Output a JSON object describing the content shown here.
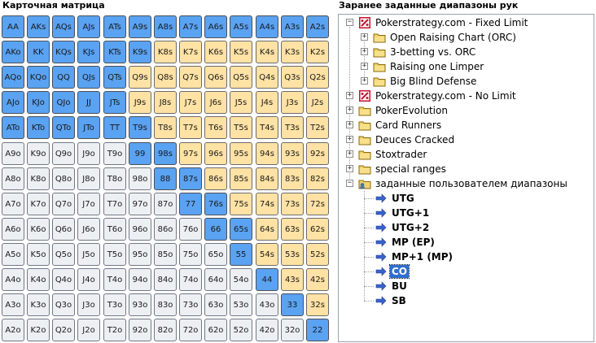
{
  "left_title": "Карточная матрица",
  "right_title": "Заранее заданные диапазоны рук",
  "matrix": [
    [
      [
        "AA",
        "s"
      ],
      [
        "AKs",
        "s"
      ],
      [
        "AQs",
        "s"
      ],
      [
        "AJs",
        "s"
      ],
      [
        "ATs",
        "s"
      ],
      [
        "A9s",
        "s"
      ],
      [
        "A8s",
        "s"
      ],
      [
        "A7s",
        "s"
      ],
      [
        "A6s",
        "s"
      ],
      [
        "A5s",
        "s"
      ],
      [
        "A4s",
        "s"
      ],
      [
        "A3s",
        "s"
      ],
      [
        "A2s",
        "s"
      ]
    ],
    [
      [
        "AKo",
        "s"
      ],
      [
        "KK",
        "s"
      ],
      [
        "KQs",
        "s"
      ],
      [
        "KJs",
        "s"
      ],
      [
        "KTs",
        "s"
      ],
      [
        "K9s",
        "s"
      ],
      [
        "K8s",
        "o"
      ],
      [
        "K7s",
        "o"
      ],
      [
        "K6s",
        "o"
      ],
      [
        "K5s",
        "o"
      ],
      [
        "K4s",
        "o"
      ],
      [
        "K3s",
        "o"
      ],
      [
        "K2s",
        "o"
      ]
    ],
    [
      [
        "AQo",
        "s"
      ],
      [
        "KQo",
        "s"
      ],
      [
        "QQ",
        "s"
      ],
      [
        "QJs",
        "s"
      ],
      [
        "QTs",
        "s"
      ],
      [
        "Q9s",
        "o"
      ],
      [
        "Q8s",
        "o"
      ],
      [
        "Q7s",
        "o"
      ],
      [
        "Q6s",
        "o"
      ],
      [
        "Q5s",
        "o"
      ],
      [
        "Q4s",
        "o"
      ],
      [
        "Q3s",
        "o"
      ],
      [
        "Q2s",
        "o"
      ]
    ],
    [
      [
        "AJo",
        "s"
      ],
      [
        "KJo",
        "s"
      ],
      [
        "QJo",
        "s"
      ],
      [
        "JJ",
        "s"
      ],
      [
        "JTs",
        "s"
      ],
      [
        "J9s",
        "o"
      ],
      [
        "J8s",
        "o"
      ],
      [
        "J7s",
        "o"
      ],
      [
        "J6s",
        "o"
      ],
      [
        "J5s",
        "o"
      ],
      [
        "J4s",
        "o"
      ],
      [
        "J3s",
        "o"
      ],
      [
        "J2s",
        "o"
      ]
    ],
    [
      [
        "ATo",
        "s"
      ],
      [
        "KTo",
        "s"
      ],
      [
        "QTo",
        "s"
      ],
      [
        "JTo",
        "s"
      ],
      [
        "TT",
        "s"
      ],
      [
        "T9s",
        "s"
      ],
      [
        "T8s",
        "o"
      ],
      [
        "T7s",
        "o"
      ],
      [
        "T6s",
        "o"
      ],
      [
        "T5s",
        "o"
      ],
      [
        "T4s",
        "o"
      ],
      [
        "T3s",
        "o"
      ],
      [
        "T2s",
        "o"
      ]
    ],
    [
      [
        "A9o",
        "n"
      ],
      [
        "K9o",
        "n"
      ],
      [
        "Q9o",
        "n"
      ],
      [
        "J9o",
        "n"
      ],
      [
        "T9o",
        "n"
      ],
      [
        "99",
        "s"
      ],
      [
        "98s",
        "s"
      ],
      [
        "97s",
        "o"
      ],
      [
        "96s",
        "o"
      ],
      [
        "95s",
        "o"
      ],
      [
        "94s",
        "o"
      ],
      [
        "93s",
        "o"
      ],
      [
        "92s",
        "o"
      ]
    ],
    [
      [
        "A8o",
        "n"
      ],
      [
        "K8o",
        "n"
      ],
      [
        "Q8o",
        "n"
      ],
      [
        "J8o",
        "n"
      ],
      [
        "T8o",
        "n"
      ],
      [
        "98o",
        "n"
      ],
      [
        "88",
        "s"
      ],
      [
        "87s",
        "s"
      ],
      [
        "86s",
        "o"
      ],
      [
        "85s",
        "o"
      ],
      [
        "84s",
        "o"
      ],
      [
        "83s",
        "o"
      ],
      [
        "82s",
        "o"
      ]
    ],
    [
      [
        "A7o",
        "n"
      ],
      [
        "K7o",
        "n"
      ],
      [
        "Q7o",
        "n"
      ],
      [
        "J7o",
        "n"
      ],
      [
        "T7o",
        "n"
      ],
      [
        "97o",
        "n"
      ],
      [
        "87o",
        "n"
      ],
      [
        "77",
        "s"
      ],
      [
        "76s",
        "s"
      ],
      [
        "75s",
        "o"
      ],
      [
        "74s",
        "o"
      ],
      [
        "73s",
        "o"
      ],
      [
        "72s",
        "o"
      ]
    ],
    [
      [
        "A6o",
        "n"
      ],
      [
        "K6o",
        "n"
      ],
      [
        "Q6o",
        "n"
      ],
      [
        "J6o",
        "n"
      ],
      [
        "T6o",
        "n"
      ],
      [
        "96o",
        "n"
      ],
      [
        "86o",
        "n"
      ],
      [
        "76o",
        "n"
      ],
      [
        "66",
        "s"
      ],
      [
        "65s",
        "s"
      ],
      [
        "64s",
        "o"
      ],
      [
        "63s",
        "o"
      ],
      [
        "62s",
        "o"
      ]
    ],
    [
      [
        "A5o",
        "n"
      ],
      [
        "K5o",
        "n"
      ],
      [
        "Q5o",
        "n"
      ],
      [
        "J5o",
        "n"
      ],
      [
        "T5o",
        "n"
      ],
      [
        "95o",
        "n"
      ],
      [
        "85o",
        "n"
      ],
      [
        "75o",
        "n"
      ],
      [
        "65o",
        "n"
      ],
      [
        "55",
        "s"
      ],
      [
        "54s",
        "o"
      ],
      [
        "53s",
        "o"
      ],
      [
        "52s",
        "o"
      ]
    ],
    [
      [
        "A4o",
        "n"
      ],
      [
        "K4o",
        "n"
      ],
      [
        "Q4o",
        "n"
      ],
      [
        "J4o",
        "n"
      ],
      [
        "T4o",
        "n"
      ],
      [
        "94o",
        "n"
      ],
      [
        "84o",
        "n"
      ],
      [
        "74o",
        "n"
      ],
      [
        "64o",
        "n"
      ],
      [
        "54o",
        "n"
      ],
      [
        "44",
        "s"
      ],
      [
        "43s",
        "o"
      ],
      [
        "42s",
        "o"
      ]
    ],
    [
      [
        "A3o",
        "n"
      ],
      [
        "K3o",
        "n"
      ],
      [
        "Q3o",
        "n"
      ],
      [
        "J3o",
        "n"
      ],
      [
        "T3o",
        "n"
      ],
      [
        "93o",
        "n"
      ],
      [
        "83o",
        "n"
      ],
      [
        "73o",
        "n"
      ],
      [
        "63o",
        "n"
      ],
      [
        "53o",
        "n"
      ],
      [
        "43o",
        "n"
      ],
      [
        "33",
        "s"
      ],
      [
        "32s",
        "o"
      ]
    ],
    [
      [
        "A2o",
        "n"
      ],
      [
        "K2o",
        "n"
      ],
      [
        "Q2o",
        "n"
      ],
      [
        "J2o",
        "n"
      ],
      [
        "T2o",
        "n"
      ],
      [
        "92o",
        "n"
      ],
      [
        "82o",
        "n"
      ],
      [
        "72o",
        "n"
      ],
      [
        "62o",
        "n"
      ],
      [
        "52o",
        "n"
      ],
      [
        "42o",
        "n"
      ],
      [
        "32o",
        "n"
      ],
      [
        "22",
        "s"
      ]
    ]
  ],
  "tree": [
    {
      "label": "Pokerstrategy.com - Fixed Limit",
      "level": 0,
      "icon": "pokerstrategy-logo-icon",
      "expander": "−"
    },
    {
      "label": "Open Raising Chart (ORC)",
      "level": 1,
      "icon": "folder-icon",
      "expander": "+"
    },
    {
      "label": "3-betting vs. ORC",
      "level": 1,
      "icon": "folder-icon",
      "expander": "+"
    },
    {
      "label": "Raising one Limper",
      "level": 1,
      "icon": "folder-icon",
      "expander": "+"
    },
    {
      "label": "Big Blind Defense",
      "level": 1,
      "icon": "folder-icon",
      "expander": "+"
    },
    {
      "label": "Pokerstrategy.com - No Limit",
      "level": 0,
      "icon": "pokerstrategy-logo-icon",
      "expander": "+"
    },
    {
      "label": "PokerEvolution",
      "level": 0,
      "icon": "folder-icon",
      "expander": "+"
    },
    {
      "label": "Card Runners",
      "level": 0,
      "icon": "folder-icon",
      "expander": "+"
    },
    {
      "label": "Deuces Cracked",
      "level": 0,
      "icon": "folder-icon",
      "expander": "+"
    },
    {
      "label": "Stoxtrader",
      "level": 0,
      "icon": "folder-icon",
      "expander": "+"
    },
    {
      "label": "special ranges",
      "level": 0,
      "icon": "folder-icon",
      "expander": "+"
    },
    {
      "label": "заданные пользователем диапазоны",
      "level": 0,
      "icon": "user-folder-icon",
      "expander": "−"
    },
    {
      "label": "UTG",
      "level": 2,
      "icon": "arrow-right-icon"
    },
    {
      "label": "UTG+1",
      "level": 2,
      "icon": "arrow-right-icon"
    },
    {
      "label": "UTG+2",
      "level": 2,
      "icon": "arrow-right-icon"
    },
    {
      "label": "MP (EP)",
      "level": 2,
      "icon": "arrow-right-icon"
    },
    {
      "label": "MP+1 (MP)",
      "level": 2,
      "icon": "arrow-right-icon"
    },
    {
      "label": "CO",
      "level": 2,
      "icon": "arrow-right-icon",
      "selected": true
    },
    {
      "label": "BU",
      "level": 2,
      "icon": "arrow-right-icon"
    },
    {
      "label": "SB",
      "level": 2,
      "icon": "arrow-right-icon"
    }
  ]
}
